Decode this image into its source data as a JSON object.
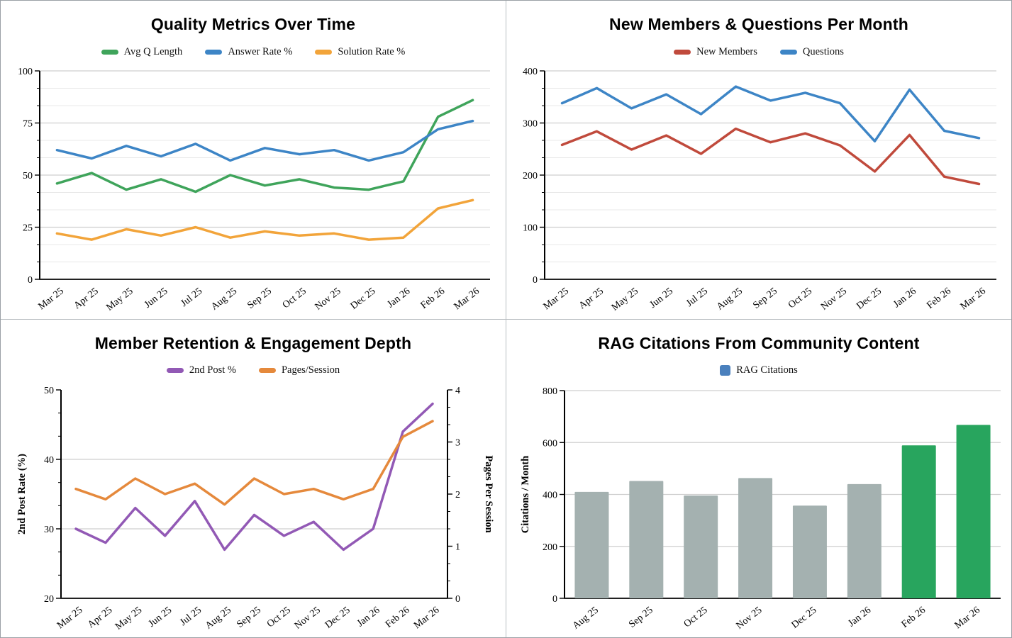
{
  "page": {
    "background": "#ffffff",
    "divider_color": "#b9bdc1",
    "grid_major_color": "#cfcfcf",
    "grid_minor_color": "#e8e8e8",
    "axis_color": "#000000"
  },
  "chart_data": [
    {
      "type": "line",
      "title": "Quality Metrics Over Time",
      "categories": [
        "Mar 25",
        "Apr 25",
        "May 25",
        "Jun 25",
        "Jul 25",
        "Aug 25",
        "Sep 25",
        "Oct 25",
        "Nov 25",
        "Dec 25",
        "Jan 26",
        "Feb 26",
        "Mar 26"
      ],
      "y_axis": {
        "min": 0,
        "max": 100,
        "major_ticks": [
          0,
          25,
          50,
          75,
          100
        ],
        "minor_divisions": 3,
        "minor_gridlines": true
      },
      "legend_position": "top",
      "series": [
        {
          "name": "Avg Q Length",
          "color": "#3fa45b",
          "values": [
            46,
            51,
            43,
            48,
            42,
            50,
            45,
            48,
            44,
            43,
            47,
            78,
            86
          ]
        },
        {
          "name": "Answer Rate %",
          "color": "#3d85c6",
          "values": [
            62,
            58,
            64,
            59,
            65,
            57,
            63,
            60,
            62,
            57,
            61,
            72,
            76
          ]
        },
        {
          "name": "Solution Rate %",
          "color": "#f2a43a",
          "values": [
            22,
            19,
            24,
            21,
            25,
            20,
            23,
            21,
            22,
            19,
            20,
            34,
            38
          ]
        }
      ]
    },
    {
      "type": "line",
      "title": "New Members & Questions Per Month",
      "categories": [
        "Mar 25",
        "Apr 25",
        "May 25",
        "Jun 25",
        "Jul 25",
        "Aug 25",
        "Sep 25",
        "Oct 25",
        "Nov 25",
        "Dec 25",
        "Jan 26",
        "Feb 26",
        "Mar 26"
      ],
      "y_axis": {
        "min": 0,
        "max": 400,
        "major_ticks": [
          0,
          100,
          200,
          300,
          400
        ],
        "minor_divisions": 3,
        "minor_gridlines": true
      },
      "legend_position": "top",
      "series": [
        {
          "name": "New Members",
          "color": "#c04a3c",
          "values": [
            258,
            284,
            249,
            276,
            241,
            289,
            263,
            280,
            257,
            207,
            277,
            197,
            183
          ]
        },
        {
          "name": "Questions",
          "color": "#3d85c6",
          "values": [
            338,
            367,
            328,
            355,
            317,
            370,
            343,
            358,
            338,
            265,
            364,
            285,
            271
          ]
        }
      ]
    },
    {
      "type": "line-dual-axis",
      "title": "Member Retention & Engagement Depth",
      "categories": [
        "Mar 25",
        "Apr 25",
        "May 25",
        "Jun 25",
        "Jul 25",
        "Aug 25",
        "Sep 25",
        "Oct 25",
        "Nov 25",
        "Dec 25",
        "Jan 26",
        "Feb 26",
        "Mar 26"
      ],
      "left_axis": {
        "label": "2nd Post Rate (%)",
        "min": 20,
        "max": 50,
        "major_ticks": [
          20,
          30,
          40,
          50
        ],
        "minor_divisions": 3,
        "gridlines": [
          30,
          40
        ]
      },
      "right_axis": {
        "label": "Pages Per Session",
        "min": 0,
        "max": 4,
        "major_ticks": [
          0,
          1,
          2,
          3,
          4
        ],
        "minor_divisions": 3
      },
      "legend_position": "top",
      "series": [
        {
          "name": "2nd Post %",
          "color": "#9259b5",
          "axis": "left",
          "values": [
            30,
            28,
            33,
            29,
            34,
            27,
            32,
            29,
            31,
            27,
            30,
            44,
            48
          ]
        },
        {
          "name": "Pages/Session",
          "color": "#e5893c",
          "axis": "right",
          "values": [
            2.1,
            1.9,
            2.3,
            2.0,
            2.2,
            1.8,
            2.3,
            2.0,
            2.1,
            1.9,
            2.1,
            3.1,
            3.4
          ]
        }
      ]
    },
    {
      "type": "bar",
      "title": "RAG Citations From Community Content",
      "categories": [
        "Aug 25",
        "Sep 25",
        "Oct 25",
        "Nov 25",
        "Dec 25",
        "Jan 26",
        "Feb 26",
        "Mar 26"
      ],
      "values": [
        410,
        452,
        396,
        463,
        357,
        440,
        589,
        668
      ],
      "bar_colors": [
        "#a4b1b0",
        "#a4b1b0",
        "#a4b1b0",
        "#a4b1b0",
        "#a4b1b0",
        "#a4b1b0",
        "#28a55e",
        "#28a55e"
      ],
      "y_axis": {
        "label": "Citations / Month",
        "min": 0,
        "max": 800,
        "major_ticks": [
          0,
          200,
          400,
          600,
          800
        ]
      },
      "legend_position": "top",
      "legend": [
        {
          "name": "RAG Citations",
          "color": "#4a80bd"
        }
      ]
    }
  ]
}
